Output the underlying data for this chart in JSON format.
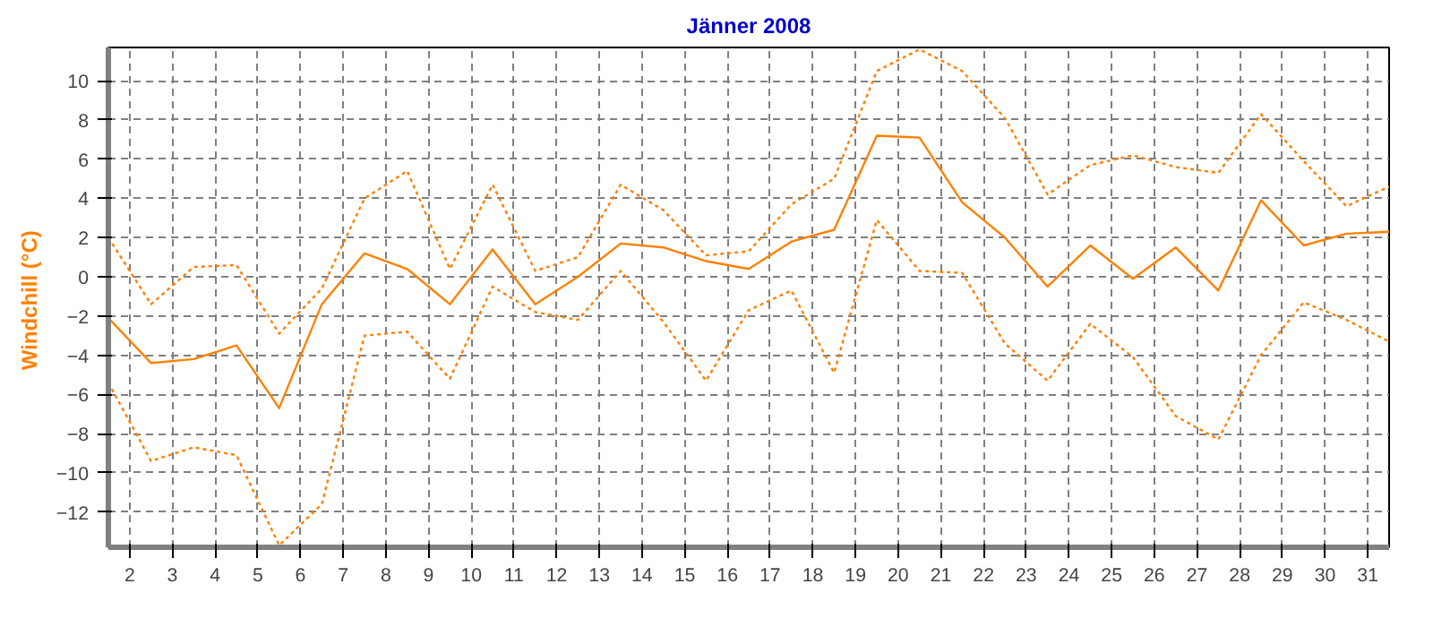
{
  "chart_data": {
    "type": "line",
    "title": "Jänner 2008",
    "ylabel": "Windchill  (°C)",
    "x": [
      1.5,
      2.5,
      3.5,
      4.5,
      5.5,
      6.5,
      7.5,
      8.5,
      9.5,
      10.5,
      11.5,
      12.5,
      13.5,
      14.5,
      15.5,
      16.5,
      17.5,
      18.5,
      19.5,
      20.5,
      21.5,
      22.5,
      23.5,
      24.5,
      25.5,
      26.5,
      27.5,
      28.5,
      29.5,
      30.5,
      31.5
    ],
    "series": [
      {
        "color": "#ff8000",
        "line_style": "dotted",
        "values": [
          2.0,
          -1.4,
          0.5,
          0.6,
          -2.9,
          -0.6,
          4.0,
          5.4,
          0.4,
          4.7,
          0.3,
          1.0,
          4.7,
          3.4,
          1.1,
          1.3,
          3.7,
          5.0,
          10.5,
          11.6,
          10.5,
          8.1,
          4.2,
          5.7,
          6.2,
          5.6,
          5.3,
          8.3,
          5.9,
          3.6,
          4.6
        ]
      },
      {
        "color": "#ff8000",
        "line_style": "solid",
        "values": [
          -2.1,
          -4.4,
          -4.2,
          -3.5,
          -6.7,
          -1.4,
          1.2,
          0.4,
          -1.4,
          1.4,
          -1.4,
          0.0,
          1.7,
          1.5,
          0.8,
          0.4,
          1.8,
          2.4,
          7.2,
          7.1,
          3.8,
          2.0,
          -0.5,
          1.6,
          -0.1,
          1.5,
          -0.7,
          3.9,
          1.6,
          2.2,
          2.3
        ]
      },
      {
        "color": "#ff8000",
        "line_style": "dotted",
        "values": [
          -5.4,
          -9.4,
          -8.7,
          -9.1,
          -13.7,
          -11.6,
          -3.0,
          -2.8,
          -5.2,
          -0.5,
          -1.8,
          -2.2,
          0.3,
          -2.3,
          -5.3,
          -1.7,
          -0.7,
          -4.9,
          2.9,
          0.3,
          0.2,
          -3.4,
          -5.3,
          -2.4,
          -4.1,
          -7.1,
          -8.3,
          -4.0,
          -1.3,
          -2.2,
          -3.3
        ]
      }
    ],
    "xlim": [
      1.5,
      31.5
    ],
    "ylim": [
      -13.8,
      11.7
    ],
    "xticks": [
      2,
      3,
      4,
      5,
      6,
      7,
      8,
      9,
      10,
      11,
      12,
      13,
      14,
      15,
      16,
      17,
      18,
      19,
      20,
      21,
      22,
      23,
      24,
      25,
      26,
      27,
      28,
      29,
      30,
      31
    ],
    "yticks": [
      -12,
      -10,
      -8,
      -6,
      -4,
      -2,
      0,
      2,
      4,
      6,
      8,
      10
    ],
    "grid": true,
    "marker": "none"
  }
}
